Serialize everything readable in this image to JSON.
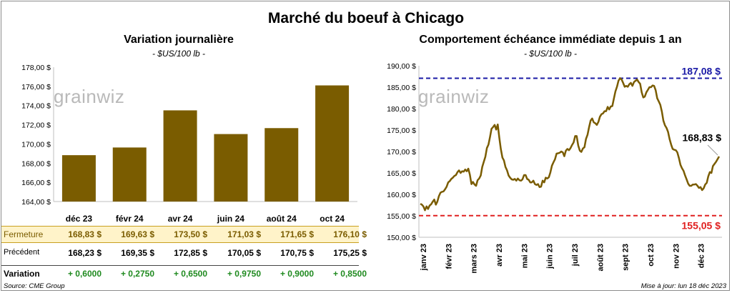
{
  "title": "Marché du boeuf à Chicago",
  "source": "Source: CME Group",
  "updated": "Mise à jour: lun 18 déc 2023",
  "watermark": "grainwiz",
  "table": {
    "row_labels": {
      "close": "Fermeture",
      "previous": "Précédent",
      "variation": "Variation"
    },
    "close": [
      "168,83  $",
      "169,63  $",
      "173,50  $",
      "171,03  $",
      "171,65  $",
      "176,10  $"
    ],
    "previous": [
      "168,23  $",
      "169,35  $",
      "172,85  $",
      "170,05  $",
      "170,75  $",
      "175,25  $"
    ],
    "variation": [
      "+ 0,6000",
      "+ 0,2750",
      "+ 0,6500",
      "+ 0,9750",
      "+ 0,9000",
      "+ 0,8500"
    ]
  },
  "colors": {
    "bar": "#7a5c00",
    "line": "#7a5c00",
    "high": "#1a1aa6",
    "low": "#e02020",
    "close_bg": "#fff3c9"
  },
  "chart_data": [
    {
      "type": "bar",
      "title": "Variation  journalière",
      "subtitle": "- $US/100 lb -",
      "categories": [
        "déc 23",
        "févr 24",
        "avr 24",
        "juin 24",
        "août 24",
        "oct 24"
      ],
      "values": [
        168.83,
        169.63,
        173.5,
        171.03,
        171.65,
        176.1
      ],
      "ylim": [
        164,
        178
      ],
      "yticks": [
        "164,00 $",
        "166,00 $",
        "168,00 $",
        "170,00 $",
        "172,00 $",
        "174,00 $",
        "176,00 $",
        "178,00 $"
      ],
      "grid": false
    },
    {
      "type": "line",
      "title": "Comportement  échéance immédiate depuis 1 an",
      "subtitle": "- $US/100 lb -",
      "xlabels": [
        "janv 23",
        "févr 23",
        "mars 23",
        "avr 23",
        "mai 23",
        "juin 23",
        "juil 23",
        "août 23",
        "sept 23",
        "oct 23",
        "nov 23",
        "déc 23"
      ],
      "ylim": [
        150,
        190
      ],
      "yticks": [
        "150,00 $",
        "155,00 $",
        "160,00 $",
        "165,00 $",
        "170,00 $",
        "175,00 $",
        "180,00 $",
        "185,00 $",
        "190,00 $"
      ],
      "high": 187.08,
      "high_label": "187,08 $",
      "low": 155.05,
      "low_label": "155,05 $",
      "last": 168.83,
      "last_label": "168,83 $",
      "series": [
        {
          "values": [
            157.8,
            157.6,
            157.2,
            156.3,
            157.2,
            156.6,
            157.4,
            157.7,
            158.3,
            158.8,
            157.6,
            158.3,
            159.6,
            160.4,
            160.6,
            160.7,
            161.2,
            161.8,
            162.8,
            163.1,
            163.6,
            163.9,
            164.3,
            164.5,
            165.2,
            165.6,
            165.0,
            165.4,
            165.3,
            165.8,
            165.4,
            166.0,
            164.6,
            162.4,
            162.9,
            162.3,
            162.0,
            163.3,
            163.7,
            164.4,
            166.4,
            167.6,
            168.8,
            170.8,
            171.6,
            173.4,
            175.3,
            175.7,
            176.2,
            175.1,
            176.3,
            173.2,
            170.6,
            168.6,
            167.9,
            166.4,
            165.6,
            164.4,
            163.9,
            163.5,
            163.4,
            163.6,
            163.2,
            163.7,
            163.3,
            163.2,
            163.5,
            164.5,
            164.5,
            163.6,
            163.4,
            162.8,
            162.8,
            163.2,
            162.4,
            162.2,
            162.4,
            161.7,
            161.8,
            163.2,
            162.8,
            163.9,
            163.7,
            164.0,
            165.1,
            166.7,
            167.5,
            168.2,
            169.5,
            169.6,
            169.7,
            170.0,
            169.8,
            168.9,
            170.2,
            170.6,
            170.3,
            170.8,
            171.5,
            172.1,
            173.6,
            173.6,
            171.4,
            170.2,
            169.9,
            170.7,
            171.0,
            172.9,
            173.9,
            175.7,
            177.2,
            177.7,
            176.8,
            176.6,
            176.2,
            176.9,
            178.1,
            178.7,
            178.9,
            179.4,
            179.4,
            180.4,
            179.8,
            180.5,
            180.6,
            182.3,
            184.0,
            185.1,
            186.5,
            187.1,
            186.8,
            186.0,
            185.1,
            185.3,
            185.1,
            185.7,
            186.0,
            185.3,
            186.2,
            186.5,
            186.8,
            186.2,
            185.8,
            183.8,
            182.6,
            182.8,
            183.8,
            184.4,
            185.0,
            185.0,
            185.4,
            185.3,
            184.3,
            182.4,
            181.7,
            180.9,
            179.3,
            177.2,
            176.1,
            175.5,
            174.6,
            172.9,
            171.6,
            170.6,
            170.4,
            170.3,
            169.8,
            168.5,
            166.9,
            166.1,
            165.5,
            164.4,
            163.5,
            162.5,
            162.0,
            162.0,
            162.3,
            162.3,
            162.4,
            162.0,
            161.5,
            161.7,
            161.0,
            161.4,
            162.3,
            162.7,
            164.2,
            165.2,
            165.0,
            166.6,
            167.1,
            167.6,
            168.2,
            168.83
          ]
        }
      ]
    }
  ]
}
